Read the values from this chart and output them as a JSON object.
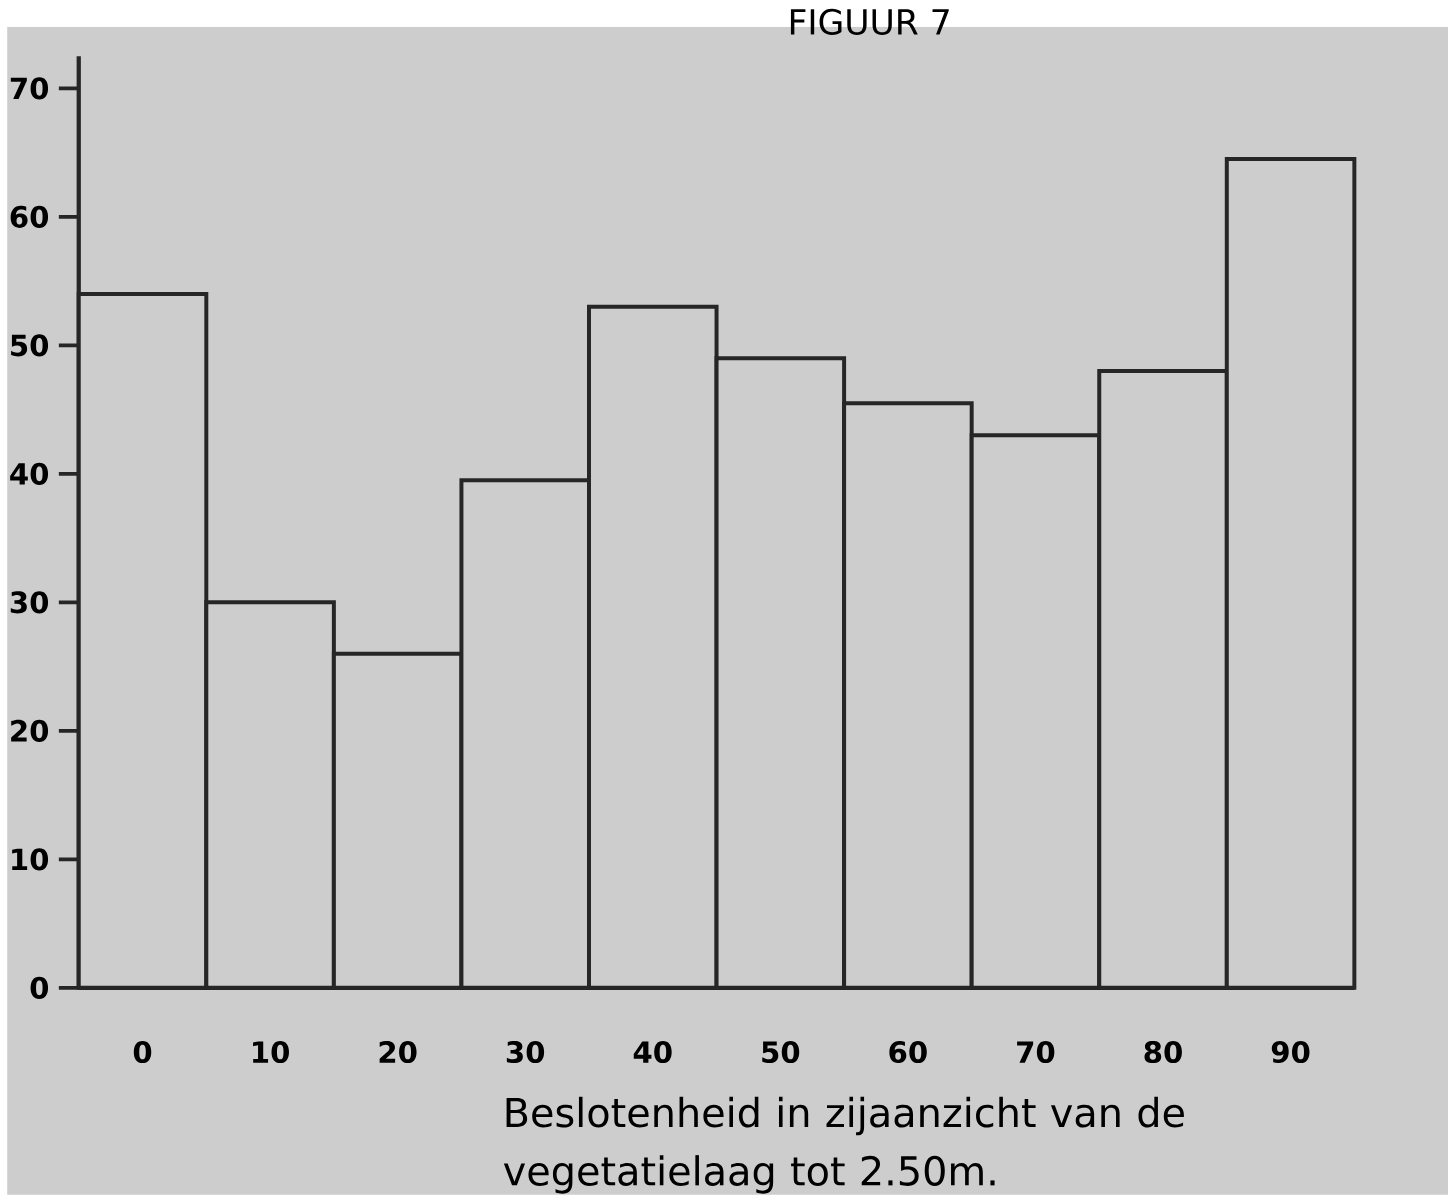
{
  "chart_data": {
    "type": "bar",
    "title": "FIGUUR 7",
    "xlabel": "Beslotenheid in zijaanzicht van de vegetatielaag tot 2.50m.",
    "categories": [
      "0",
      "10",
      "20",
      "30",
      "40",
      "50",
      "60",
      "70",
      "80",
      "90"
    ],
    "values": [
      54,
      30,
      26,
      39.5,
      53,
      49,
      45.5,
      43,
      48,
      64.5
    ],
    "color": "#cdcdcd",
    "ylim": [
      0,
      72.5
    ],
    "yticks": [
      0,
      10,
      20,
      30,
      40,
      50,
      60,
      70
    ]
  }
}
